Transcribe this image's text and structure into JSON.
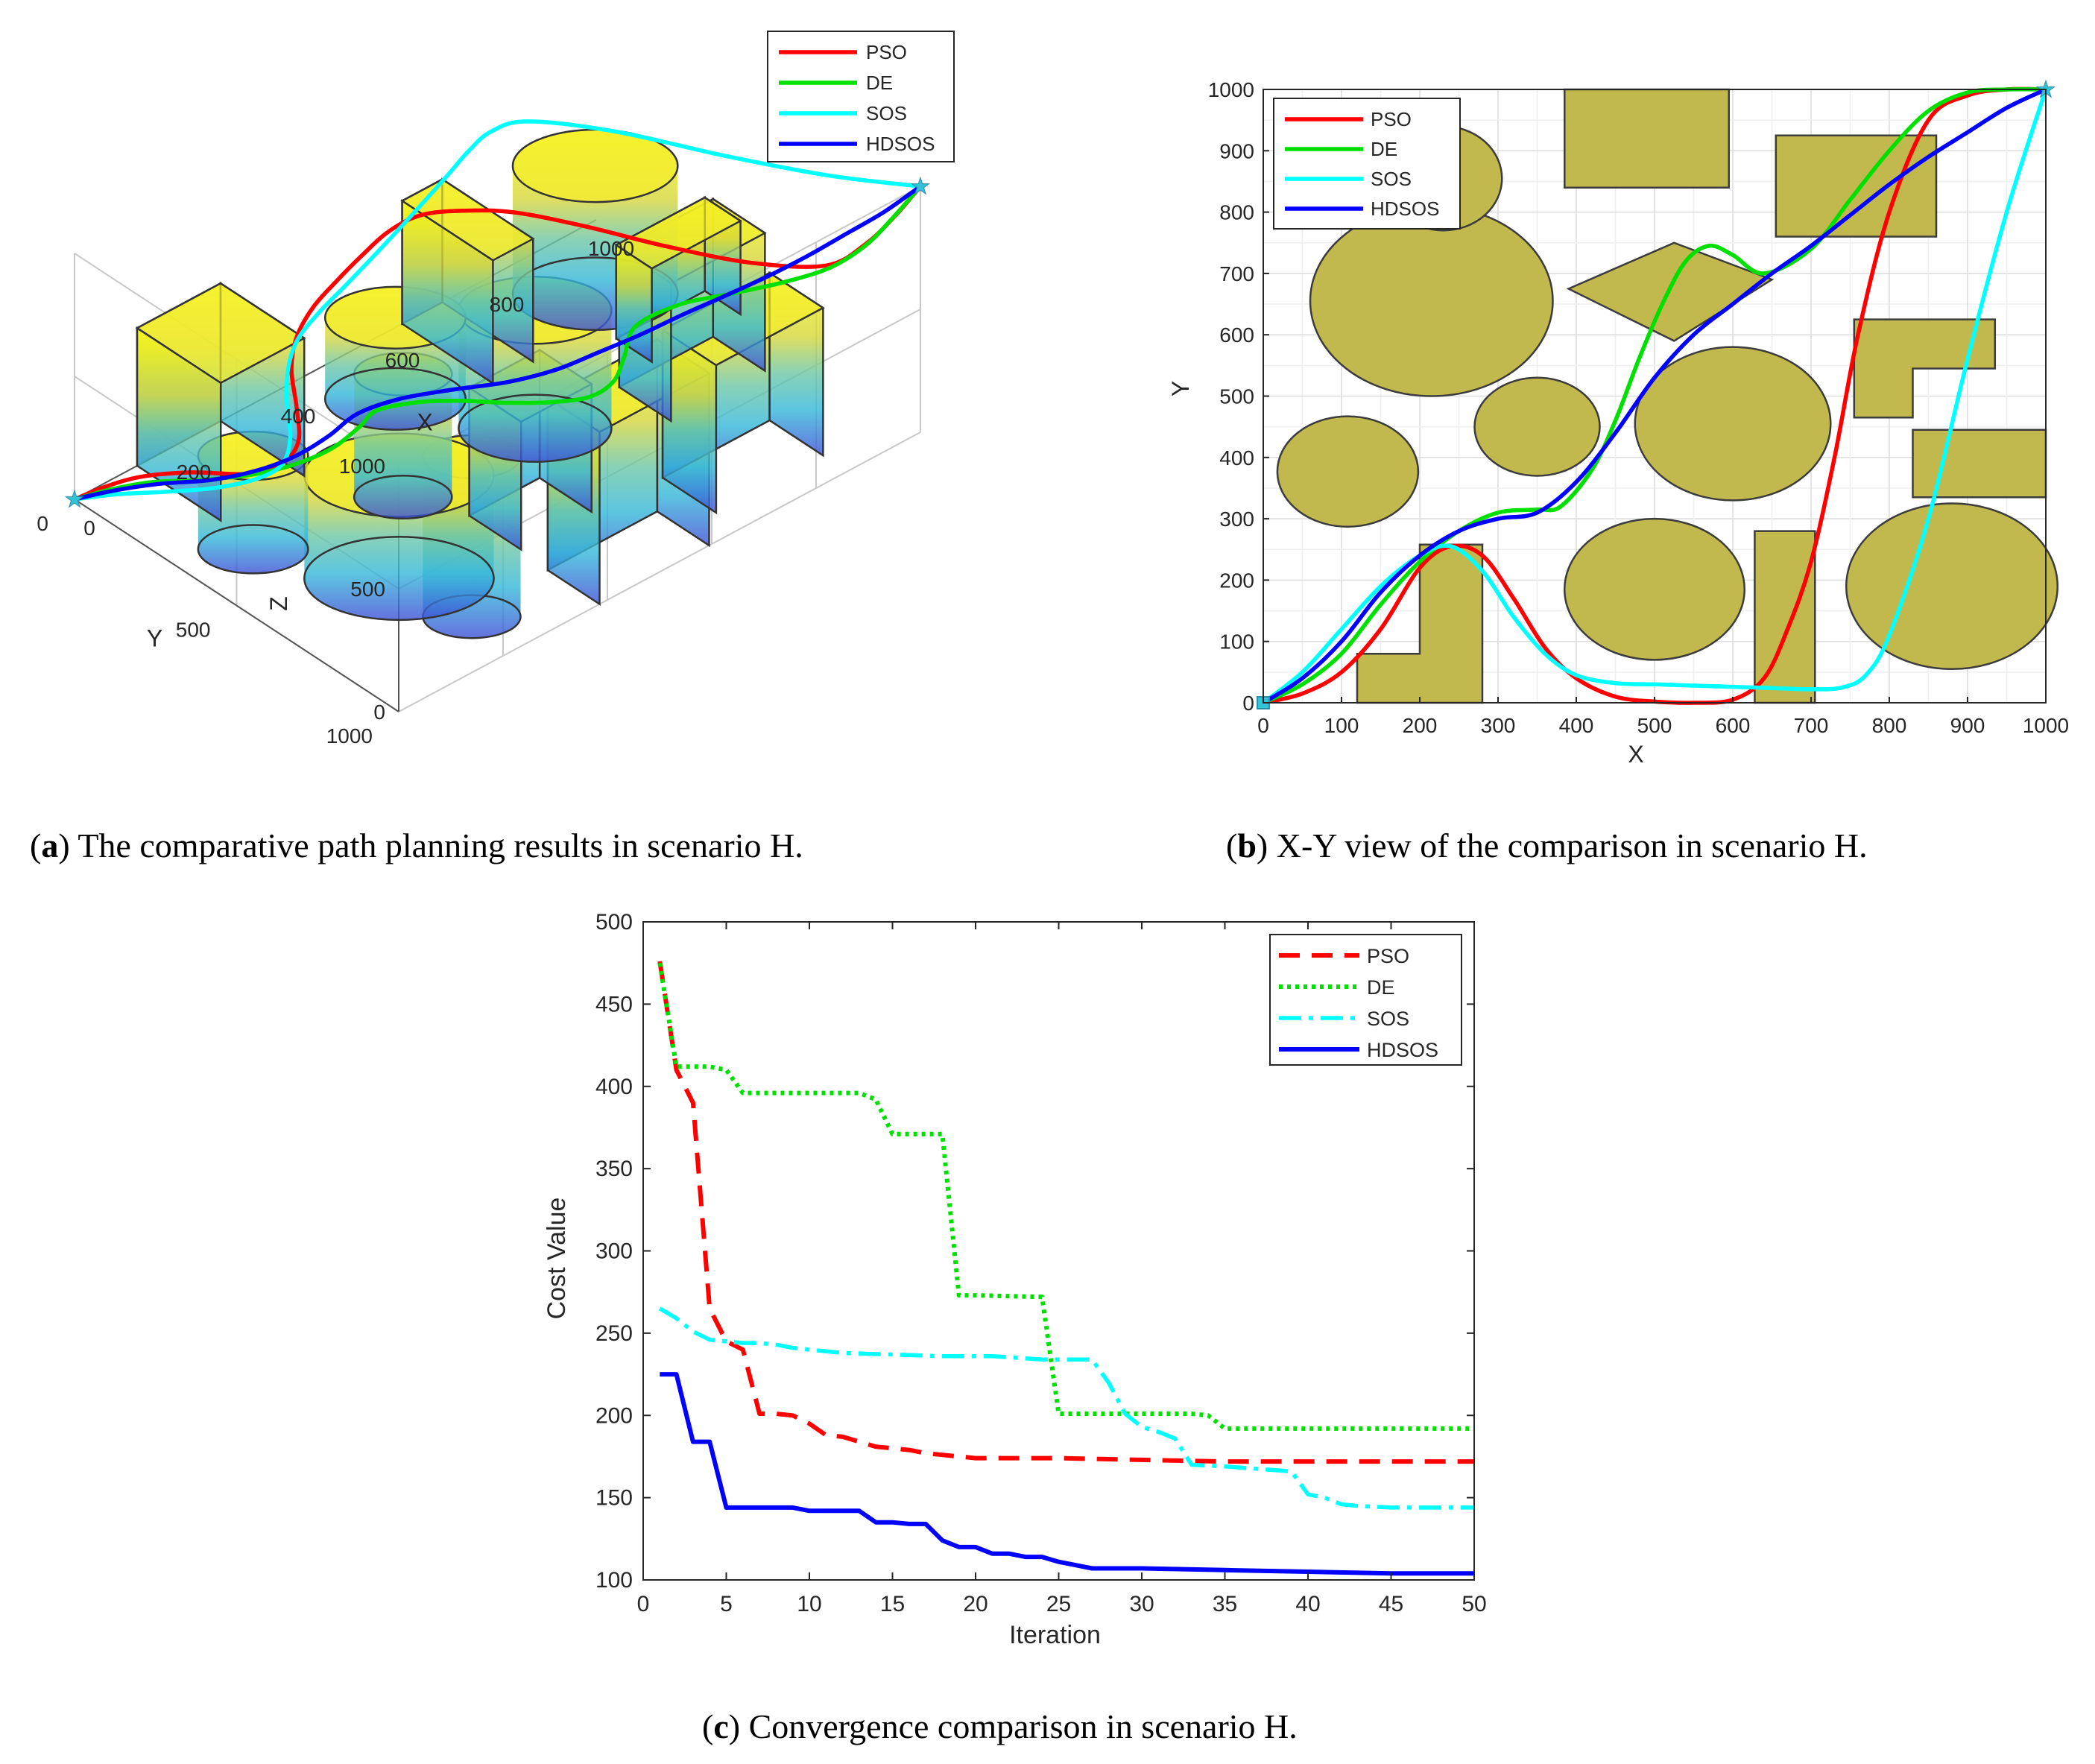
{
  "captions": {
    "a": {
      "letter": "a",
      "text": "The comparative path planning results in scenario H."
    },
    "b": {
      "letter": "b",
      "text": "X-Y view of the comparison in scenario H."
    },
    "c": {
      "letter": "c",
      "text": "Convergence comparison in scenario H."
    }
  },
  "colors": {
    "PSO": "#ff0000",
    "DE": "#00e000",
    "SOS": "#00ffff",
    "HDSOS": "#0000ff",
    "obstacle": "#c2b94e"
  },
  "chart_data": [
    {
      "id": "a",
      "type": "line",
      "title": "",
      "xlabel": "X",
      "ylabel": "Y",
      "zlabel": "Z",
      "x_ticks": [
        "0",
        "200",
        "400",
        "600",
        "800",
        "1000"
      ],
      "y_ticks": [
        "0",
        "500",
        "1000"
      ],
      "z_ticks": [
        "0",
        "500",
        "1000"
      ],
      "legend": [
        "PSO",
        "DE",
        "SOS",
        "HDSOS"
      ],
      "start": [
        0,
        0,
        0
      ],
      "goal": [
        1000,
        1000,
        1000
      ],
      "series": [
        {
          "name": "PSO"
        },
        {
          "name": "DE"
        },
        {
          "name": "SOS"
        },
        {
          "name": "HDSOS"
        }
      ]
    },
    {
      "id": "b",
      "type": "line",
      "title": "",
      "xlabel": "X",
      "ylabel": "Y",
      "xlim": [
        0,
        1000
      ],
      "ylim": [
        0,
        1000
      ],
      "x_ticks": [
        0,
        100,
        200,
        300,
        400,
        500,
        600,
        700,
        800,
        900,
        1000
      ],
      "y_ticks": [
        0,
        100,
        200,
        300,
        400,
        500,
        600,
        700,
        800,
        900,
        1000
      ],
      "grid": true,
      "legend_position": "top-left",
      "obstacles": {
        "ellipses": [
          {
            "cx": 215,
            "cy": 655,
            "rx": 155,
            "ry": 155
          },
          {
            "cx": 230,
            "cy": 855,
            "rx": 75,
            "ry": 85
          },
          {
            "cx": 108,
            "cy": 377,
            "rx": 90,
            "ry": 90
          },
          {
            "cx": 350,
            "cy": 450,
            "rx": 80,
            "ry": 80
          },
          {
            "cx": 600,
            "cy": 455,
            "rx": 125,
            "ry": 125
          },
          {
            "cx": 500,
            "cy": 185,
            "rx": 115,
            "ry": 115
          },
          {
            "cx": 880,
            "cy": 190,
            "rx": 135,
            "ry": 135
          }
        ],
        "polygons": [
          [
            [
              385,
              840
            ],
            [
              595,
              840
            ],
            [
              595,
              1000
            ],
            [
              385,
              1000
            ]
          ],
          [
            [
              655,
              760
            ],
            [
              860,
              760
            ],
            [
              860,
              925
            ],
            [
              655,
              925
            ]
          ],
          [
            [
              390,
              675
            ],
            [
              525,
              750
            ],
            [
              650,
              690
            ],
            [
              525,
              590
            ]
          ],
          [
            [
              755,
              465
            ],
            [
              830,
              465
            ],
            [
              830,
              545
            ],
            [
              935,
              545
            ],
            [
              935,
              625
            ],
            [
              755,
              625
            ]
          ],
          [
            [
              830,
              335
            ],
            [
              1000,
              335
            ],
            [
              1000,
              445
            ],
            [
              830,
              445
            ]
          ],
          [
            [
              628,
              0
            ],
            [
              705,
              0
            ],
            [
              705,
              280
            ],
            [
              628,
              280
            ]
          ],
          [
            [
              120,
              0
            ],
            [
              280,
              0
            ],
            [
              280,
              258
            ],
            [
              200,
              258
            ],
            [
              200,
              80
            ],
            [
              120,
              80
            ]
          ]
        ]
      },
      "series": [
        {
          "name": "PSO",
          "x": [
            0,
            50,
            100,
            150,
            200,
            240,
            280,
            320,
            360,
            400,
            450,
            500,
            550,
            600,
            640,
            670,
            700,
            730,
            760,
            800,
            850,
            900,
            950,
            1000
          ],
          "y": [
            0,
            15,
            50,
            120,
            220,
            255,
            240,
            170,
            90,
            40,
            10,
            2,
            0,
            5,
            40,
            120,
            230,
            400,
            600,
            800,
            950,
            990,
            1000,
            1000
          ]
        },
        {
          "name": "DE",
          "x": [
            0,
            50,
            100,
            150,
            200,
            250,
            300,
            350,
            380,
            420,
            450,
            480,
            510,
            540,
            570,
            600,
            640,
            700,
            750,
            800,
            850,
            900,
            950,
            1000
          ],
          "y": [
            0,
            30,
            80,
            160,
            230,
            280,
            310,
            315,
            320,
            380,
            460,
            560,
            650,
            720,
            745,
            730,
            700,
            740,
            820,
            900,
            965,
            995,
            1000,
            1000
          ]
        },
        {
          "name": "SOS",
          "x": [
            0,
            50,
            100,
            150,
            200,
            240,
            280,
            320,
            360,
            400,
            450,
            500,
            550,
            600,
            650,
            700,
            740,
            770,
            800,
            850,
            900,
            950,
            1000
          ],
          "y": [
            0,
            50,
            120,
            190,
            240,
            255,
            215,
            140,
            80,
            45,
            32,
            30,
            28,
            26,
            24,
            22,
            25,
            45,
            110,
            300,
            560,
            800,
            1000
          ]
        },
        {
          "name": "HDSOS",
          "x": [
            0,
            50,
            100,
            150,
            200,
            250,
            300,
            350,
            400,
            450,
            500,
            550,
            600,
            650,
            700,
            750,
            800,
            850,
            900,
            950,
            1000
          ],
          "y": [
            0,
            40,
            100,
            180,
            240,
            280,
            300,
            310,
            360,
            440,
            530,
            600,
            650,
            700,
            745,
            795,
            845,
            890,
            930,
            970,
            1000
          ]
        }
      ]
    },
    {
      "id": "c",
      "type": "line",
      "title": "",
      "xlabel": "Iteration",
      "ylabel": "Cost Value",
      "xlim": [
        0,
        50
      ],
      "ylim": [
        100,
        500
      ],
      "x_ticks": [
        0,
        5,
        10,
        15,
        20,
        25,
        30,
        35,
        40,
        45,
        50
      ],
      "y_ticks": [
        100,
        150,
        200,
        250,
        300,
        350,
        400,
        450,
        500
      ],
      "grid": false,
      "legend_position": "top-right",
      "series": [
        {
          "name": "PSO",
          "x": [
            1,
            2,
            3,
            4,
            5,
            6,
            7,
            8,
            9,
            10,
            11,
            12,
            13,
            14,
            15,
            16,
            17,
            18,
            19,
            20,
            25,
            30,
            35,
            40,
            45,
            50
          ],
          "y": [
            476,
            410,
            390,
            265,
            245,
            240,
            201,
            201,
            200,
            195,
            188,
            187,
            184,
            181,
            180,
            179,
            177,
            176,
            175,
            174,
            174,
            173,
            172,
            172,
            172,
            172
          ]
        },
        {
          "name": "DE",
          "x": [
            1,
            2,
            3,
            4,
            5,
            6,
            7,
            13,
            14,
            15,
            17,
            18,
            19,
            20,
            24,
            25,
            33,
            34,
            35,
            40,
            45,
            50
          ],
          "y": [
            475,
            412,
            412,
            412,
            410,
            396,
            396,
            396,
            392,
            371,
            371,
            371,
            273,
            273,
            272,
            201,
            201,
            200,
            192,
            192,
            192,
            192
          ]
        },
        {
          "name": "SOS",
          "x": [
            1,
            2,
            3,
            4,
            5,
            6,
            7,
            8,
            9,
            10,
            12,
            15,
            18,
            21,
            24,
            27,
            28,
            29,
            30,
            31,
            32,
            33,
            35,
            39,
            40,
            41,
            42,
            43,
            45,
            50
          ],
          "y": [
            265,
            259,
            251,
            246,
            245,
            244,
            244,
            243,
            241,
            240,
            238,
            237,
            236,
            236,
            234,
            234,
            220,
            201,
            193,
            190,
            186,
            170,
            169,
            166,
            152,
            150,
            146,
            145,
            144,
            144
          ]
        },
        {
          "name": "HDSOS",
          "x": [
            1,
            2,
            3,
            4,
            5,
            6,
            7,
            8,
            9,
            10,
            11,
            12,
            13,
            14,
            15,
            16,
            17,
            18,
            19,
            20,
            21,
            22,
            23,
            24,
            25,
            26,
            27,
            28,
            30,
            35,
            40,
            45,
            50
          ],
          "y": [
            225,
            225,
            184,
            184,
            144,
            144,
            144,
            144,
            144,
            142,
            142,
            142,
            142,
            135,
            135,
            134,
            134,
            124,
            120,
            120,
            116,
            116,
            114,
            114,
            111,
            109,
            107,
            107,
            107,
            106,
            105,
            104,
            104
          ]
        }
      ]
    }
  ]
}
